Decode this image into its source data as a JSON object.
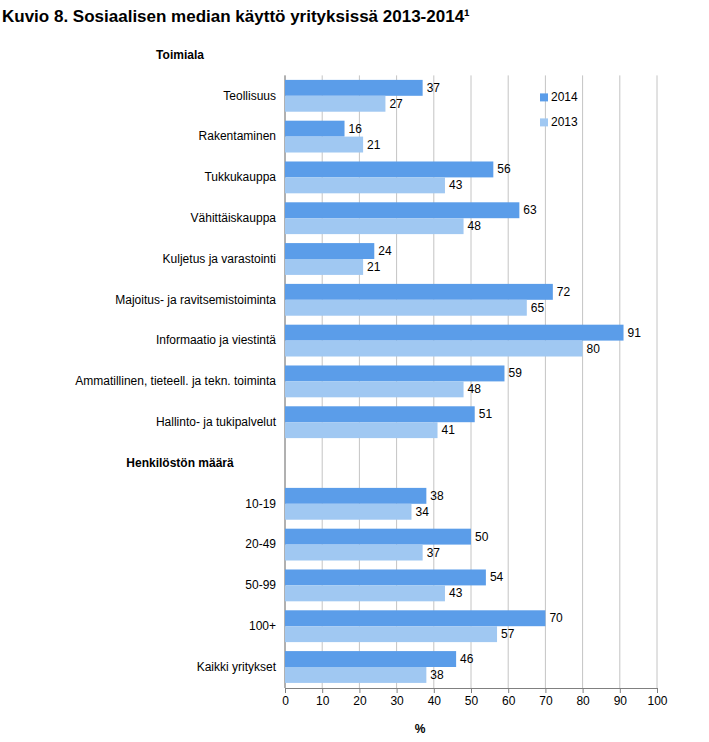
{
  "chart_data": {
    "type": "bar",
    "title": "Kuvio 8. Sosiaalisen median käyttö yrityksissä 2013-2014¹",
    "orientation": "horizontal",
    "categories": [
      "Toimiala",
      "Teollisuus",
      "Rakentaminen",
      "Tukkukauppa",
      "Vähittäiskauppa",
      "Kuljetus ja varastointi",
      "Majoitus- ja ravitsemistoiminta",
      "Informaatio ja viestintä",
      "Ammatillinen, tieteell. ja tekn. toiminta",
      "Hallinto- ja tukipalvelut",
      "Henkilöstön määrä",
      "10-19",
      "20-49",
      "50-99",
      "100+",
      "Kaikki yritykset"
    ],
    "series": [
      {
        "name": "2014",
        "color": "#5b9de9",
        "values": [
          null,
          37,
          16,
          56,
          63,
          24,
          72,
          91,
          59,
          51,
          null,
          38,
          50,
          54,
          70,
          46
        ]
      },
      {
        "name": "2013",
        "color": "#a0c8f2",
        "values": [
          null,
          27,
          21,
          43,
          48,
          21,
          65,
          80,
          48,
          41,
          null,
          34,
          37,
          43,
          57,
          38
        ]
      }
    ],
    "x_label": "%",
    "xlim": [
      0,
      100
    ],
    "xticks": [
      0,
      10,
      20,
      30,
      40,
      50,
      60,
      70,
      80,
      90,
      100
    ],
    "grid": true,
    "legend": "upper right",
    "data_labels": true
  }
}
